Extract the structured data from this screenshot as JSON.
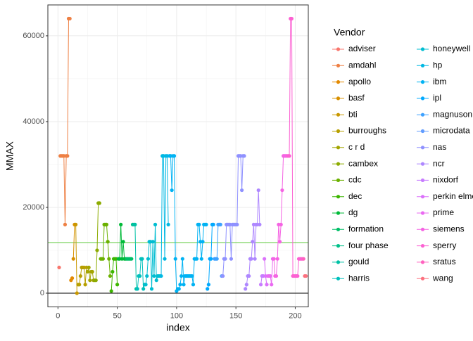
{
  "chart_data": {
    "type": "line",
    "x_label": "index",
    "y_label": "MMAX",
    "legend_title": "Vendor",
    "xlim": [
      -8.5,
      211
    ],
    "ylim": [
      -3200,
      67200
    ],
    "xticks": [
      0,
      50,
      100,
      150,
      200
    ],
    "yticks": [
      0,
      20000,
      40000,
      60000
    ],
    "grid": true,
    "legend": "right",
    "reference_lines": [
      {
        "value": 0,
        "color": "#000000"
      },
      {
        "value": 11796,
        "color": "#5BC83A"
      }
    ],
    "series": [
      {
        "name": "adviser",
        "color": "#F8766D",
        "x": [
          1
        ],
        "values": [
          6000
        ]
      },
      {
        "name": "amdahl",
        "color": "#EE8044",
        "x": [
          2,
          3,
          4,
          5,
          6,
          7,
          8,
          9,
          10
        ],
        "values": [
          32000,
          32000,
          32000,
          32000,
          16000,
          32000,
          32000,
          64000,
          64000
        ]
      },
      {
        "name": "apollo",
        "color": "#E38900",
        "x": [
          11,
          12
        ],
        "values": [
          3000,
          3500
        ]
      },
      {
        "name": "basf",
        "color": "#D89000",
        "x": [
          13,
          14
        ],
        "values": [
          8000,
          16000
        ]
      },
      {
        "name": "bti",
        "color": "#C99800",
        "x": [
          15,
          16
        ],
        "values": [
          16000,
          0
        ]
      },
      {
        "name": "burroughs",
        "color": "#B79F00",
        "x": [
          17,
          18,
          19,
          20,
          21,
          22,
          23,
          24
        ],
        "values": [
          2000,
          2000,
          4000,
          6000,
          6000,
          6000,
          2000,
          6000
        ]
      },
      {
        "name": "c r d",
        "color": "#A3A500",
        "x": [
          25,
          26,
          27,
          28,
          29,
          30
        ],
        "values": [
          5000,
          6000,
          3000,
          5000,
          5000,
          3000
        ]
      },
      {
        "name": "cambex",
        "color": "#8CAB00",
        "x": [
          31,
          32,
          33,
          34,
          35
        ],
        "values": [
          3000,
          3000,
          10000,
          21000,
          21000
        ]
      },
      {
        "name": "cdc",
        "color": "#6BB100",
        "x": [
          36,
          37,
          38,
          39,
          40,
          41,
          42,
          43,
          44
        ],
        "values": [
          8000,
          8000,
          8000,
          16000,
          16000,
          16000,
          12000,
          8000,
          4000
        ]
      },
      {
        "name": "dec",
        "color": "#3DB600",
        "x": [
          45,
          46,
          47,
          48,
          49,
          50
        ],
        "values": [
          500,
          5000,
          8000,
          8000,
          8000,
          2000
        ]
      },
      {
        "name": "dg",
        "color": "#00BA38",
        "x": [
          51,
          52,
          53,
          54,
          55,
          56,
          57
        ],
        "values": [
          8000,
          8000,
          16000,
          8000,
          12000,
          8000,
          8000
        ]
      },
      {
        "name": "formation",
        "color": "#00BE67",
        "x": [
          58,
          59,
          60,
          61,
          62
        ],
        "values": [
          8000,
          8000,
          8000,
          8000,
          8000
        ]
      },
      {
        "name": "four phase",
        "color": "#00C089",
        "x": [
          63
        ],
        "values": [
          16000
        ]
      },
      {
        "name": "gould",
        "color": "#00C1A5",
        "x": [
          64,
          65,
          66
        ],
        "values": [
          16000,
          16000,
          1000
        ]
      },
      {
        "name": "harris",
        "color": "#00C0BC",
        "x": [
          67,
          68,
          69,
          70,
          71,
          72,
          73
        ],
        "values": [
          1000,
          4000,
          4000,
          8000,
          8000,
          1000,
          2000
        ]
      },
      {
        "name": "honeywell",
        "color": "#00BDD1",
        "x": [
          74,
          75,
          76,
          77,
          78,
          79,
          80,
          81,
          82,
          83,
          84,
          85,
          86
        ],
        "values": [
          2000,
          4000,
          8000,
          12000,
          12000,
          1000,
          12000,
          4000,
          16000,
          3000,
          4000,
          4000,
          4000
        ]
      },
      {
        "name": "hp",
        "color": "#00B8E3",
        "x": [
          87,
          88,
          89,
          90,
          91,
          92,
          93
        ],
        "values": [
          4000,
          32000,
          32000,
          8000,
          32000,
          32000,
          16000
        ]
      },
      {
        "name": "ibm",
        "color": "#00B2F3",
        "x": [
          94,
          95,
          96,
          97,
          98,
          99,
          100,
          101,
          102,
          103,
          104,
          105,
          106,
          107,
          108,
          109,
          110,
          111,
          112,
          113,
          114,
          115,
          116,
          117,
          118,
          119,
          120,
          121,
          122,
          123,
          124,
          125
        ],
        "values": [
          32000,
          32000,
          24000,
          32000,
          32000,
          8000,
          500,
          1000,
          1000,
          2000,
          4000,
          8000,
          2000,
          4000,
          4000,
          4000,
          4000,
          4000,
          4000,
          4000,
          2000,
          8000,
          8000,
          8000,
          16000,
          16000,
          12000,
          8000,
          12000,
          16000,
          16000,
          16000
        ]
      },
      {
        "name": "ipl",
        "color": "#00A9FF",
        "x": [
          126,
          127,
          128,
          129,
          130,
          131
        ],
        "values": [
          1000,
          2000,
          8000,
          8000,
          16000,
          16000
        ]
      },
      {
        "name": "magnuson",
        "color": "#3DA1FF",
        "x": [
          132,
          133,
          134,
          135,
          136,
          137
        ],
        "values": [
          8000,
          8000,
          8000,
          16000,
          16000,
          16000
        ]
      },
      {
        "name": "microdata",
        "color": "#619CFF",
        "x": [
          138
        ],
        "values": [
          4000
        ]
      },
      {
        "name": "nas",
        "color": "#8F91FF",
        "x": [
          139,
          140,
          141,
          142,
          143,
          144,
          145,
          146,
          147,
          148,
          149,
          150,
          151,
          152,
          153,
          154,
          155,
          156,
          157
        ],
        "values": [
          4000,
          8000,
          8000,
          16000,
          16000,
          16000,
          16000,
          8000,
          16000,
          16000,
          16000,
          16000,
          16000,
          32000,
          32000,
          32000,
          24000,
          32000,
          32000
        ]
      },
      {
        "name": "ncr",
        "color": "#AE87FF",
        "x": [
          158,
          159,
          160,
          161,
          162,
          163,
          164,
          165,
          166,
          167,
          168,
          169,
          170
        ],
        "values": [
          1000,
          2000,
          4000,
          4000,
          8000,
          8000,
          12000,
          16000,
          8000,
          16000,
          16000,
          24000,
          16000
        ]
      },
      {
        "name": "nixdorf",
        "color": "#C77CFF",
        "x": [
          171,
          172,
          173
        ],
        "values": [
          2000,
          4000,
          4000
        ]
      },
      {
        "name": "perkin elmer",
        "color": "#DB72FB",
        "x": [
          174,
          175,
          176
        ],
        "values": [
          8000,
          4000,
          2000
        ]
      },
      {
        "name": "prime",
        "color": "#EA6AF1",
        "x": [
          177,
          178,
          179,
          180,
          181
        ],
        "values": [
          4000,
          4000,
          4000,
          2000,
          8000
        ]
      },
      {
        "name": "siemens",
        "color": "#F564E3",
        "x": [
          182,
          183,
          184,
          185,
          186,
          187,
          188,
          189,
          190,
          191,
          192,
          193
        ],
        "values": [
          8000,
          4000,
          4000,
          8000,
          16000,
          12000,
          16000,
          24000,
          32000,
          32000,
          32000,
          32000
        ]
      },
      {
        "name": "sperry",
        "color": "#FC61D2",
        "x": [
          194,
          195,
          196,
          197,
          198,
          199,
          200,
          201,
          202,
          203,
          204,
          205,
          206
        ],
        "values": [
          32000,
          32000,
          64000,
          64000,
          4000,
          4000,
          4000,
          4000,
          4000,
          8000,
          8000,
          8000,
          8000
        ]
      },
      {
        "name": "sratus",
        "color": "#FF62BF",
        "x": [
          207
        ],
        "values": [
          8000
        ]
      },
      {
        "name": "wang",
        "color": "#FC717F",
        "x": [
          208,
          209
        ],
        "values": [
          4000,
          4000
        ]
      }
    ]
  }
}
